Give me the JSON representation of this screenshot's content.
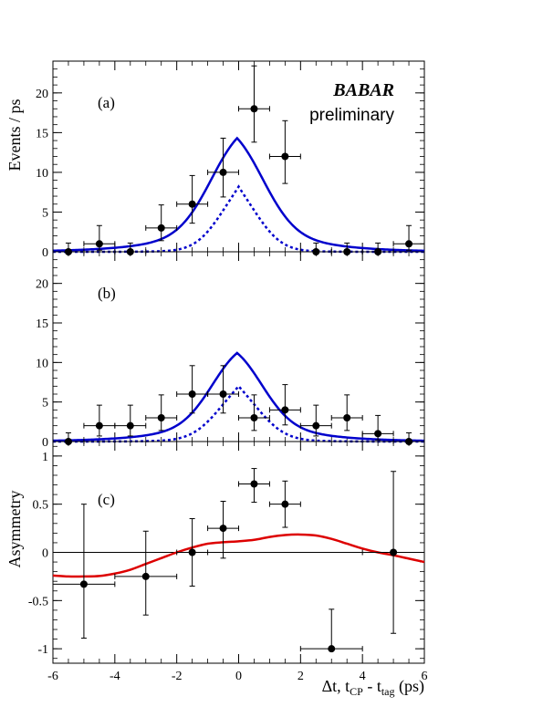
{
  "chart_data": [
    {
      "type": "scatter",
      "panel_label": "(a)",
      "ylabel": "Events / ps",
      "experiment": "BABAR",
      "experiment_sub": "preliminary",
      "xlim": [
        -6,
        6
      ],
      "ylim": [
        0,
        24
      ],
      "yticks": [
        0,
        5,
        10,
        15,
        20
      ],
      "points": [
        {
          "x": -5.5,
          "y": 0,
          "yerr": [
            0,
            1.1
          ]
        },
        {
          "x": -4.5,
          "y": 1,
          "yerr": [
            0.8,
            2.3
          ]
        },
        {
          "x": -3.5,
          "y": 0,
          "yerr": [
            0,
            1.1
          ]
        },
        {
          "x": -2.5,
          "y": 3,
          "yerr": [
            1.6,
            2.9
          ]
        },
        {
          "x": -1.5,
          "y": 6,
          "yerr": [
            2.4,
            3.6
          ]
        },
        {
          "x": -0.5,
          "y": 10,
          "yerr": [
            3.1,
            4.3
          ]
        },
        {
          "x": 0.5,
          "y": 18,
          "yerr": [
            4.2,
            5.4
          ]
        },
        {
          "x": 1.5,
          "y": 12,
          "yerr": [
            3.4,
            4.5
          ]
        },
        {
          "x": 2.5,
          "y": 0,
          "yerr": [
            0,
            1.1
          ]
        },
        {
          "x": 3.5,
          "y": 0,
          "yerr": [
            0,
            1.1
          ]
        },
        {
          "x": 4.5,
          "y": 0,
          "yerr": [
            0,
            1.1
          ]
        },
        {
          "x": 5.5,
          "y": 1,
          "yerr": [
            0.8,
            2.3
          ]
        }
      ],
      "curves": [
        {
          "style": "solid",
          "color": "#0000cc",
          "peak": 14.3,
          "center": -0.05,
          "width": 0.95,
          "tau": 1.55
        },
        {
          "style": "dotted",
          "color": "#0000cc",
          "peak": 8.2,
          "center": 0.0,
          "width": 0.75,
          "tau": 0.6
        }
      ]
    },
    {
      "type": "scatter",
      "panel_label": "(b)",
      "xlim": [
        -6,
        6
      ],
      "ylim": [
        0,
        24
      ],
      "yticks": [
        0,
        5,
        10,
        15,
        20
      ],
      "points": [
        {
          "x": -5.5,
          "y": 0,
          "yerr": [
            0,
            1.1
          ]
        },
        {
          "x": -4.5,
          "y": 2,
          "yerr": [
            1.3,
            2.6
          ]
        },
        {
          "x": -3.5,
          "y": 2,
          "yerr": [
            1.3,
            2.6
          ]
        },
        {
          "x": -2.5,
          "y": 3,
          "yerr": [
            1.6,
            2.9
          ]
        },
        {
          "x": -1.5,
          "y": 6,
          "yerr": [
            2.4,
            3.6
          ]
        },
        {
          "x": -0.5,
          "y": 6,
          "yerr": [
            2.4,
            3.6
          ]
        },
        {
          "x": 0.5,
          "y": 3,
          "yerr": [
            1.6,
            2.9
          ]
        },
        {
          "x": 1.5,
          "y": 4,
          "yerr": [
            1.9,
            3.2
          ]
        },
        {
          "x": 2.5,
          "y": 2,
          "yerr": [
            1.3,
            2.6
          ]
        },
        {
          "x": 3.5,
          "y": 3,
          "yerr": [
            1.6,
            2.9
          ]
        },
        {
          "x": 4.5,
          "y": 1,
          "yerr": [
            0.8,
            2.3
          ]
        },
        {
          "x": 5.5,
          "y": 0,
          "yerr": [
            0,
            1.1
          ]
        }
      ],
      "curves": [
        {
          "style": "solid",
          "color": "#0000cc",
          "peak": 11.2,
          "center": -0.05,
          "width": 0.9,
          "tau": 1.55
        },
        {
          "style": "dotted",
          "color": "#0000cc",
          "peak": 7.0,
          "center": 0.0,
          "width": 0.8,
          "tau": 0.7
        }
      ]
    },
    {
      "type": "scatter",
      "panel_label": "(c)",
      "ylabel": "Asymmetry",
      "xlabel": "Δt, t",
      "xlabel_sub1": "CP",
      "xlabel_mid": " - t",
      "xlabel_sub2": "tag",
      "xlabel_end": " (ps)",
      "xlim": [
        -6,
        6
      ],
      "ylim": [
        -1.15,
        1.15
      ],
      "yticks": [
        -1,
        -0.5,
        0,
        0.5,
        1
      ],
      "ytick_labels": [
        "-1",
        "-0.5",
        "0",
        "0.5",
        "1"
      ],
      "xticks": [
        -6,
        -4,
        -2,
        0,
        2,
        4,
        6
      ],
      "xtick_labels": [
        "-6",
        "-4",
        "-2",
        "0",
        "2",
        "4",
        "6"
      ],
      "points": [
        {
          "x": -5.0,
          "y": -0.33,
          "xerr": 1.0,
          "yerr": [
            0.56,
            0.83
          ]
        },
        {
          "x": -3.0,
          "y": -0.25,
          "xerr": 1.0,
          "yerr": [
            0.4,
            0.47
          ]
        },
        {
          "x": -1.5,
          "y": 0.0,
          "xerr": 0.5,
          "yerr": [
            0.35,
            0.35
          ]
        },
        {
          "x": -0.5,
          "y": 0.25,
          "xerr": 0.5,
          "yerr": [
            0.31,
            0.28
          ]
        },
        {
          "x": 0.5,
          "y": 0.71,
          "xerr": 0.5,
          "yerr": [
            0.19,
            0.16
          ]
        },
        {
          "x": 1.5,
          "y": 0.5,
          "xerr": 0.5,
          "yerr": [
            0.24,
            0.24
          ]
        },
        {
          "x": 3.0,
          "y": -1.0,
          "xerr": 1.0,
          "yerr": [
            0,
            0.41
          ]
        },
        {
          "x": 5.0,
          "y": 0.0,
          "xerr": 1.0,
          "yerr": [
            0.84,
            0.84
          ]
        }
      ],
      "curve": {
        "color": "#dd0000",
        "x": [
          -6,
          -5.5,
          -5,
          -4.5,
          -4,
          -3.5,
          -3,
          -2.5,
          -2,
          -1.5,
          -1,
          -0.5,
          0,
          0.5,
          1,
          1.5,
          2,
          2.5,
          3,
          3.5,
          4,
          4.5,
          5,
          5.5,
          6
        ],
        "y": [
          -0.24,
          -0.25,
          -0.25,
          -0.245,
          -0.22,
          -0.18,
          -0.12,
          -0.06,
          0.0,
          0.05,
          0.09,
          0.105,
          0.115,
          0.13,
          0.16,
          0.18,
          0.185,
          0.175,
          0.14,
          0.09,
          0.04,
          0.0,
          -0.03,
          -0.065,
          -0.1
        ]
      }
    }
  ]
}
